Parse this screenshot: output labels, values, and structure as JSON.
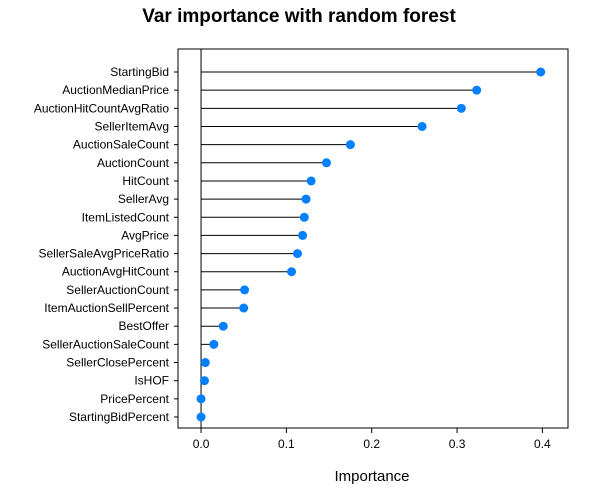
{
  "chart_data": {
    "type": "dotplot",
    "title": "Var importance with random forest",
    "xlabel": "Importance",
    "ylabel": "",
    "xlim": [
      -0.027,
      0.43
    ],
    "x_ticks": [
      "0.0",
      "0.1",
      "0.2",
      "0.3",
      "0.4"
    ],
    "x_tick_values": [
      0.0,
      0.1,
      0.2,
      0.3,
      0.4
    ],
    "reference_line_x": 0.0,
    "point_color": "#0080ff",
    "grid": false,
    "legend": "none",
    "categories": [
      "StartingBid",
      "AuctionMedianPrice",
      "AuctionHitCountAvgRatio",
      "SellerItemAvg",
      "AuctionSaleCount",
      "AuctionCount",
      "HitCount",
      "SellerAvg",
      "ItemListedCount",
      "AvgPrice",
      "SellerSaleAvgPriceRatio",
      "AuctionAvgHitCount",
      "SellerAuctionCount",
      "ItemAuctionSellPercent",
      "BestOffer",
      "SellerAuctionSaleCount",
      "SellerClosePercent",
      "IsHOF",
      "PricePercent",
      "StartingBidPercent"
    ],
    "values": [
      0.398,
      0.323,
      0.305,
      0.259,
      0.175,
      0.147,
      0.129,
      0.123,
      0.121,
      0.119,
      0.113,
      0.106,
      0.051,
      0.05,
      0.026,
      0.015,
      0.005,
      0.004,
      0.0,
      0.0
    ]
  }
}
